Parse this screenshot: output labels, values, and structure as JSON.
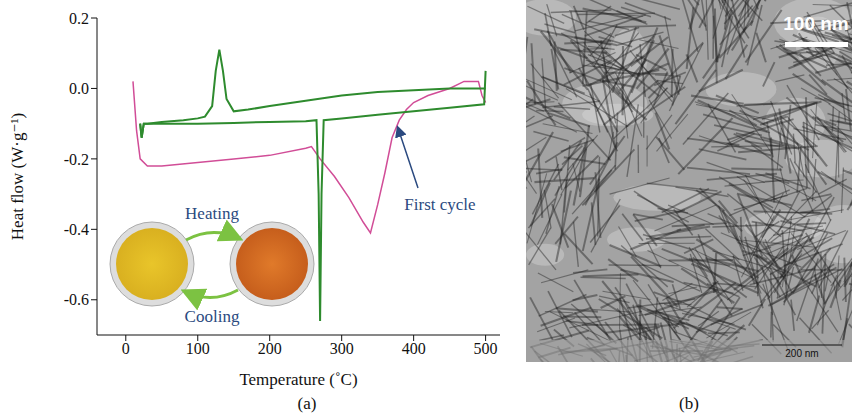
{
  "chart_data": {
    "type": "line",
    "x_label": "Temperature (˚C)",
    "y_label": "Heat flow (W·g⁻¹)",
    "xlim": [
      -40,
      520
    ],
    "xticks": [
      0,
      100,
      200,
      300,
      400,
      500
    ],
    "ylim": [
      -0.7,
      0.2
    ],
    "yticks": [
      0.2,
      {
        "value": 0,
        "label": "0.0"
      },
      -0.2,
      -0.4,
      -0.6
    ],
    "grid": false,
    "annotations": [
      "First cycle",
      "Heating",
      "Cooling"
    ],
    "series": [
      {
        "name": "First cycle",
        "color": "#d14d97",
        "x": [
          10,
          15,
          20,
          30,
          50,
          100,
          150,
          200,
          250,
          258,
          270,
          290,
          310,
          330,
          340,
          350,
          360,
          370,
          380,
          390,
          400,
          420,
          450,
          470,
          490,
          495,
          500
        ],
        "values": [
          0.02,
          -0.12,
          -0.2,
          -0.22,
          -0.22,
          -0.21,
          -0.2,
          -0.19,
          -0.17,
          -0.165,
          -0.2,
          -0.25,
          -0.31,
          -0.38,
          -0.41,
          -0.33,
          -0.24,
          -0.14,
          -0.09,
          -0.06,
          -0.04,
          -0.02,
          0.0,
          0.02,
          0.02,
          -0.02,
          -0.04
        ]
      },
      {
        "color": "#2e8b2e",
        "x": [
          20,
          22,
          25,
          50,
          100,
          150,
          200,
          250,
          265,
          268,
          270,
          272,
          275,
          300,
          350,
          400,
          450,
          498,
          500
        ],
        "values": [
          -0.1,
          -0.14,
          -0.1,
          -0.1,
          -0.1,
          -0.098,
          -0.095,
          -0.093,
          -0.09,
          -0.3,
          -0.66,
          -0.3,
          -0.09,
          -0.085,
          -0.075,
          -0.065,
          -0.055,
          -0.045,
          0.05
        ]
      },
      {
        "color": "#2e8b2e",
        "x": [
          500,
          450,
          400,
          350,
          300,
          250,
          200,
          170,
          150,
          140,
          135,
          130,
          125,
          120,
          110,
          100,
          80,
          50,
          30,
          25,
          22,
          20
        ],
        "values": [
          0.0,
          0.0,
          -0.005,
          -0.01,
          -0.02,
          -0.035,
          -0.05,
          -0.06,
          -0.065,
          -0.03,
          0.05,
          0.11,
          0.05,
          -0.05,
          -0.08,
          -0.085,
          -0.09,
          -0.095,
          -0.1,
          -0.1,
          -0.14,
          -0.1
        ]
      }
    ]
  },
  "panel_labels": [
    "(a)",
    "(b)"
  ],
  "micrograph": {
    "scale_bar": "100 nm",
    "footer_scale": "200 nm"
  }
}
